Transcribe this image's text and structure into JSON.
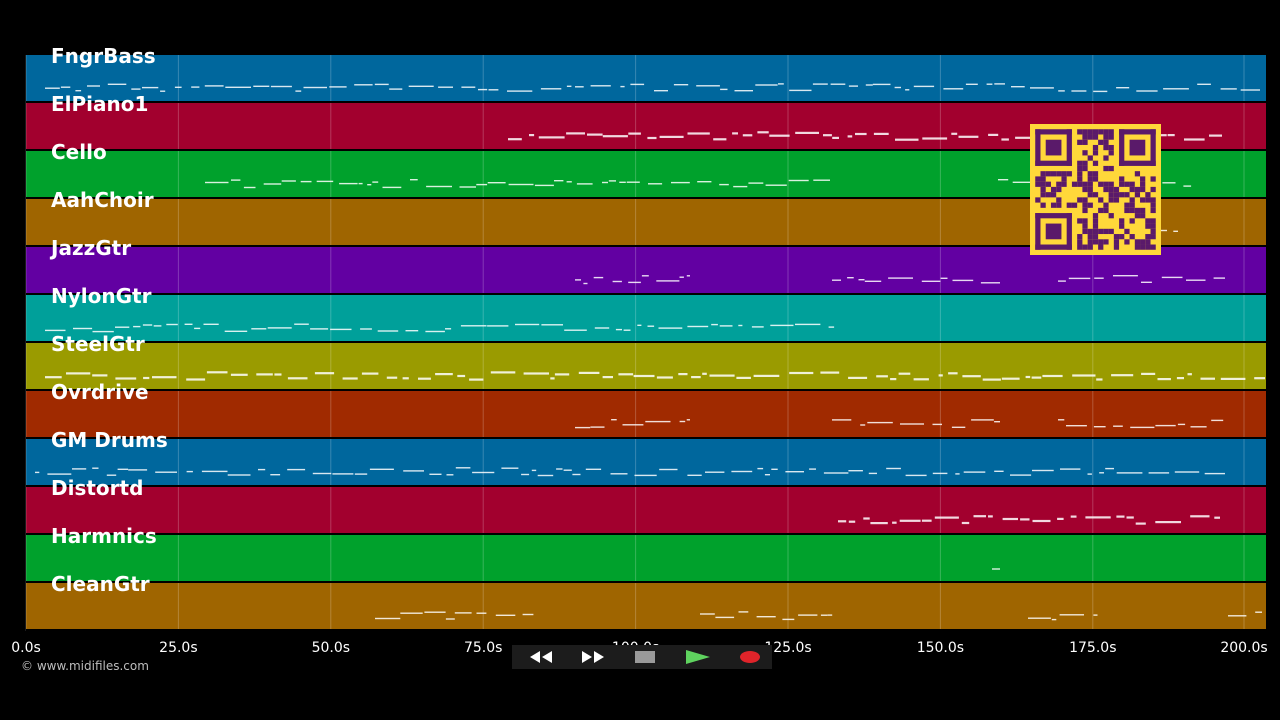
{
  "tracks": [
    {
      "name": "FngrBass",
      "color": "#00679d"
    },
    {
      "name": "ElPiano1",
      "color": "#a2002e"
    },
    {
      "name": "Cello",
      "color": "#00a12c"
    },
    {
      "name": "AahChoir",
      "color": "#9f6500"
    },
    {
      "name": "JazzGtr",
      "color": "#6200a2"
    },
    {
      "name": "NylonGtr",
      "color": "#00a09a"
    },
    {
      "name": "SteelGtr",
      "color": "#9a9b00"
    },
    {
      "name": "Ovrdrive",
      "color": "#a02a00"
    },
    {
      "name": "GM Drums",
      "color": "#00679d"
    },
    {
      "name": "Distortd",
      "color": "#a2002e"
    },
    {
      "name": "Harmnics",
      "color": "#00a12c"
    },
    {
      "name": "CleanGtr",
      "color": "#9f6500"
    }
  ],
  "timeline": {
    "ticks": [
      "0.0s",
      "25.0s",
      "50.0s",
      "75.0s",
      "100.0s",
      "125.0s",
      "150.0s",
      "175.0s",
      "200.0s"
    ]
  },
  "copyright": "© www.midifiles.com",
  "transport": {
    "buttons": [
      {
        "name": "rewind",
        "icon": "rewind-icon",
        "color": "#2a2a2a"
      },
      {
        "name": "fast-forward",
        "icon": "fast-forward-icon",
        "color": "#2a2a2a"
      },
      {
        "name": "stop",
        "icon": "stop-icon",
        "color": "#3a3a3a"
      },
      {
        "name": "play",
        "icon": "play-icon",
        "color": "#1f6f1f"
      },
      {
        "name": "record",
        "icon": "record-icon",
        "color": "#6a1414"
      }
    ]
  },
  "qr_code": {
    "color": "#ffd83a",
    "ink": "#5a1a6a"
  }
}
